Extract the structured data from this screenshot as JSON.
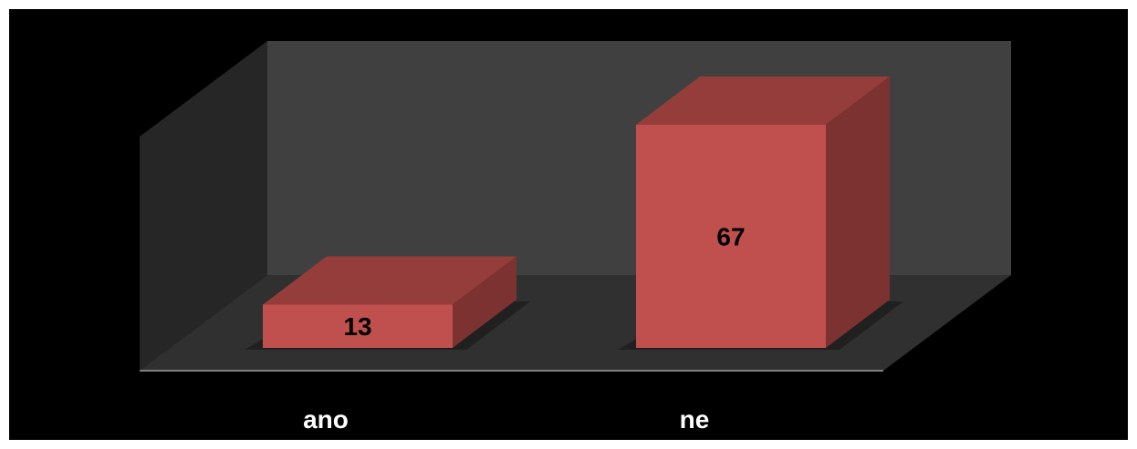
{
  "chart_data": {
    "type": "bar",
    "title": "",
    "xlabel": "",
    "ylabel": "",
    "categories": [
      "ano",
      "ne"
    ],
    "values": [
      13,
      67
    ],
    "grid": false,
    "legend": "none",
    "three_d": true,
    "colors": {
      "background": "#000000",
      "back_wall": "#404040",
      "side_wall": "#262626",
      "floor": "#303030",
      "bar_front": "#c0504d",
      "bar_top": "#953d3b",
      "bar_side": "#7c3230",
      "label_text": "#000000",
      "category_text": "#ffffff"
    }
  }
}
